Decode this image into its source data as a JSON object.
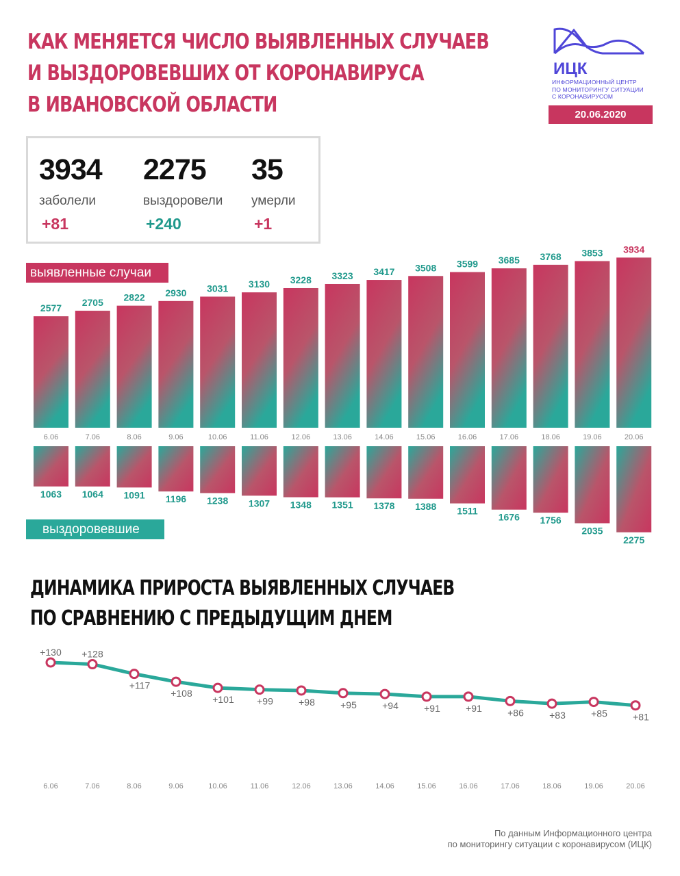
{
  "header": {
    "title_lines": [
      "КАК МЕНЯЕТСЯ ЧИСЛО ВЫЯВЛЕННЫХ СЛУЧАЕВ",
      "И ВЫЗДОРОВЕВШИХ ОТ КОРОНАВИРУСА",
      "В ИВАНОВСКОЙ ОБЛАСТИ"
    ],
    "logo_text": "ИЦК",
    "logo_subtitle_lines": [
      "ИНФОРМАЦИОННЫЙ ЦЕНТР",
      "ПО МОНИТОРИНГУ СИТУАЦИИ",
      "С КОРОНАВИРУСОМ"
    ],
    "date": "20.06.2020"
  },
  "summary": {
    "infected": {
      "value": "3934",
      "label": "заболели",
      "delta": "+81"
    },
    "recovered": {
      "value": "2275",
      "label": "выздоровели",
      "delta": "+240"
    },
    "deaths": {
      "value": "35",
      "label": "умерли",
      "delta": "+1"
    }
  },
  "labels": {
    "cases": "выявленные случаи",
    "recovered": "выздоровевшие"
  },
  "chart_data": [
    {
      "type": "bar",
      "categories": [
        "6.06",
        "7.06",
        "8.06",
        "9.06",
        "10.06",
        "11.06",
        "12.06",
        "13.06",
        "14.06",
        "15.06",
        "16.06",
        "17.06",
        "18.06",
        "19.06",
        "20.06"
      ],
      "series": [
        {
          "name": "выявленные случаи",
          "values": [
            2577,
            2705,
            2822,
            2930,
            3031,
            3130,
            3228,
            3323,
            3417,
            3508,
            3599,
            3685,
            3768,
            3853,
            3934
          ]
        },
        {
          "name": "выздоровевшие",
          "values": [
            1063,
            1064,
            1091,
            1196,
            1238,
            1307,
            1348,
            1351,
            1378,
            1388,
            1511,
            1676,
            1756,
            2035,
            2275
          ]
        }
      ],
      "colors": {
        "pink": "#c8365f",
        "teal": "#2aa89a"
      }
    },
    {
      "type": "line",
      "title_lines": [
        "ДИНАМИКА ПРИРОСТА ВЫЯВЛЕННЫХ СЛУЧАЕВ",
        "ПО СРАВНЕНИЮ С ПРЕДЫДУЩИМ ДНЕМ"
      ],
      "categories": [
        "6.06",
        "7.06",
        "8.06",
        "9.06",
        "10.06",
        "11.06",
        "12.06",
        "13.06",
        "14.06",
        "15.06",
        "16.06",
        "17.06",
        "18.06",
        "19.06",
        "20.06"
      ],
      "values": [
        130,
        128,
        117,
        108,
        101,
        99,
        98,
        95,
        94,
        91,
        91,
        86,
        83,
        85,
        81
      ],
      "point_labels": [
        "+130",
        "+128",
        "+117",
        "+108",
        "+101",
        "+99",
        "+98",
        "+95",
        "+94",
        "+91",
        "+91",
        "+86",
        "+83",
        "+85",
        "+81"
      ],
      "colors": {
        "line": "#2aa89a",
        "marker": "#c8365f"
      }
    }
  ],
  "footer_lines": [
    "По данным Информационного центра",
    "по мониторингу ситуации с коронавирусом (ИЦК)"
  ]
}
